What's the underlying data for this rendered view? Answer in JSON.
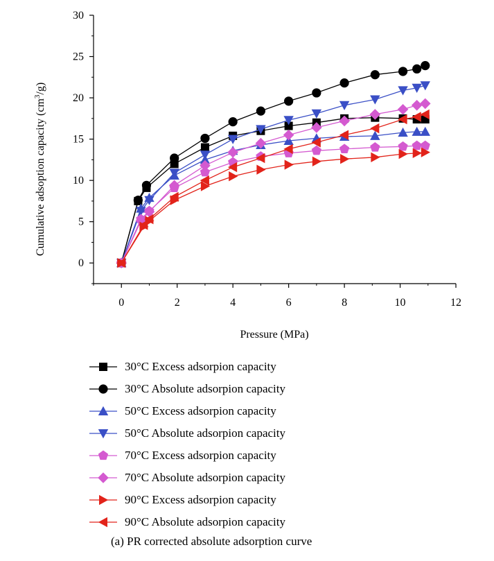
{
  "chart_data": {
    "type": "line",
    "xlabel": "Pressure (MPa)",
    "ylabel_main": "Cumulative adsoption capacity (cm",
    "ylabel_sup": "3",
    "ylabel_tail": "/g)",
    "xlim": [
      -1,
      12
    ],
    "ylim": [
      -2.5,
      30
    ],
    "xticks": [
      "0",
      "2",
      "4",
      "6",
      "8",
      "10",
      "12"
    ],
    "yticks": [
      "0",
      "5",
      "10",
      "15",
      "20",
      "25",
      "30"
    ],
    "grid": false,
    "legend_position": "bottom",
    "series": [
      {
        "name": "30°C Excess adsorpion capacity",
        "color": "#000000",
        "marker": "square",
        "x": [
          0,
          0.6,
          0.9,
          1.9,
          3.0,
          4.0,
          5.0,
          6.0,
          7.0,
          8.0,
          9.1,
          10.1,
          10.6,
          10.9
        ],
        "y": [
          0,
          7.5,
          9.1,
          12.0,
          14.0,
          15.4,
          16.0,
          16.6,
          17.0,
          17.5,
          17.6,
          17.5,
          17.4,
          17.4
        ]
      },
      {
        "name": "30°C Absolute adsorpion capacity",
        "color": "#000000",
        "marker": "circle",
        "x": [
          0,
          0.6,
          0.9,
          1.9,
          3.0,
          4.0,
          5.0,
          6.0,
          7.0,
          8.0,
          9.1,
          10.1,
          10.6,
          10.9
        ],
        "y": [
          0,
          7.6,
          9.4,
          12.7,
          15.1,
          17.1,
          18.4,
          19.6,
          20.6,
          21.8,
          22.8,
          23.2,
          23.5,
          23.9
        ]
      },
      {
        "name": "50°C Excess adsorpion capacity",
        "color": "#3a4fc6",
        "marker": "triangle-up",
        "x": [
          0,
          0.7,
          1.0,
          1.9,
          3.0,
          4.0,
          5.0,
          6.0,
          7.0,
          8.0,
          9.1,
          10.1,
          10.6,
          10.9
        ],
        "y": [
          0,
          6.6,
          7.9,
          10.6,
          12.5,
          13.6,
          14.3,
          14.8,
          15.1,
          15.3,
          15.4,
          15.8,
          15.9,
          15.9
        ]
      },
      {
        "name": "50°C Absolute adsorpion capacity",
        "color": "#3a4fc6",
        "marker": "triangle-down",
        "x": [
          0,
          0.7,
          1.0,
          1.9,
          3.0,
          4.0,
          5.0,
          6.0,
          7.0,
          8.0,
          9.1,
          10.1,
          10.6,
          10.9
        ],
        "y": [
          0,
          6.3,
          7.6,
          10.9,
          13.1,
          15.0,
          16.2,
          17.3,
          18.1,
          19.1,
          19.8,
          20.9,
          21.2,
          21.5
        ]
      },
      {
        "name": "70°C Excess adsorpion capacity",
        "color": "#d45ad0",
        "marker": "pentagon",
        "x": [
          0,
          0.7,
          1.0,
          1.9,
          3.0,
          4.0,
          5.0,
          6.0,
          7.0,
          8.0,
          9.1,
          10.1,
          10.6,
          10.9
        ],
        "y": [
          0,
          5.3,
          6.3,
          9.1,
          11.0,
          12.2,
          12.9,
          13.3,
          13.6,
          13.8,
          14.0,
          14.1,
          14.2,
          14.2
        ]
      },
      {
        "name": "70°C Absolute adsorpion capacity",
        "color": "#d45ad0",
        "marker": "diamond",
        "x": [
          0,
          0.7,
          1.0,
          1.9,
          3.0,
          4.0,
          5.0,
          6.0,
          7.0,
          8.0,
          9.1,
          10.1,
          10.6,
          10.9
        ],
        "y": [
          0,
          5.1,
          6.2,
          9.4,
          11.8,
          13.4,
          14.5,
          15.5,
          16.4,
          17.2,
          18.0,
          18.6,
          19.1,
          19.3
        ]
      },
      {
        "name": "90°C Excess adsorpion capacity",
        "color": "#e2231a",
        "marker": "triangle-right",
        "x": [
          0,
          0.8,
          1.0,
          1.9,
          3.0,
          4.0,
          5.0,
          6.0,
          7.0,
          8.0,
          9.1,
          10.1,
          10.6,
          10.9
        ],
        "y": [
          0,
          4.4,
          5.1,
          7.6,
          9.3,
          10.5,
          11.3,
          11.9,
          12.3,
          12.6,
          12.8,
          13.2,
          13.3,
          13.4
        ]
      },
      {
        "name": "90°C Absolute adsorpion capacity",
        "color": "#e2231a",
        "marker": "triangle-left",
        "x": [
          0,
          0.8,
          1.0,
          1.9,
          3.0,
          4.0,
          5.0,
          6.0,
          7.0,
          8.0,
          9.1,
          10.1,
          10.6,
          10.9
        ],
        "y": [
          0,
          4.6,
          5.3,
          8.0,
          10.0,
          11.6,
          12.7,
          13.8,
          14.6,
          15.5,
          16.3,
          17.4,
          17.7,
          18.0
        ]
      }
    ]
  },
  "caption": "(a) PR corrected absolute adsorption curve"
}
